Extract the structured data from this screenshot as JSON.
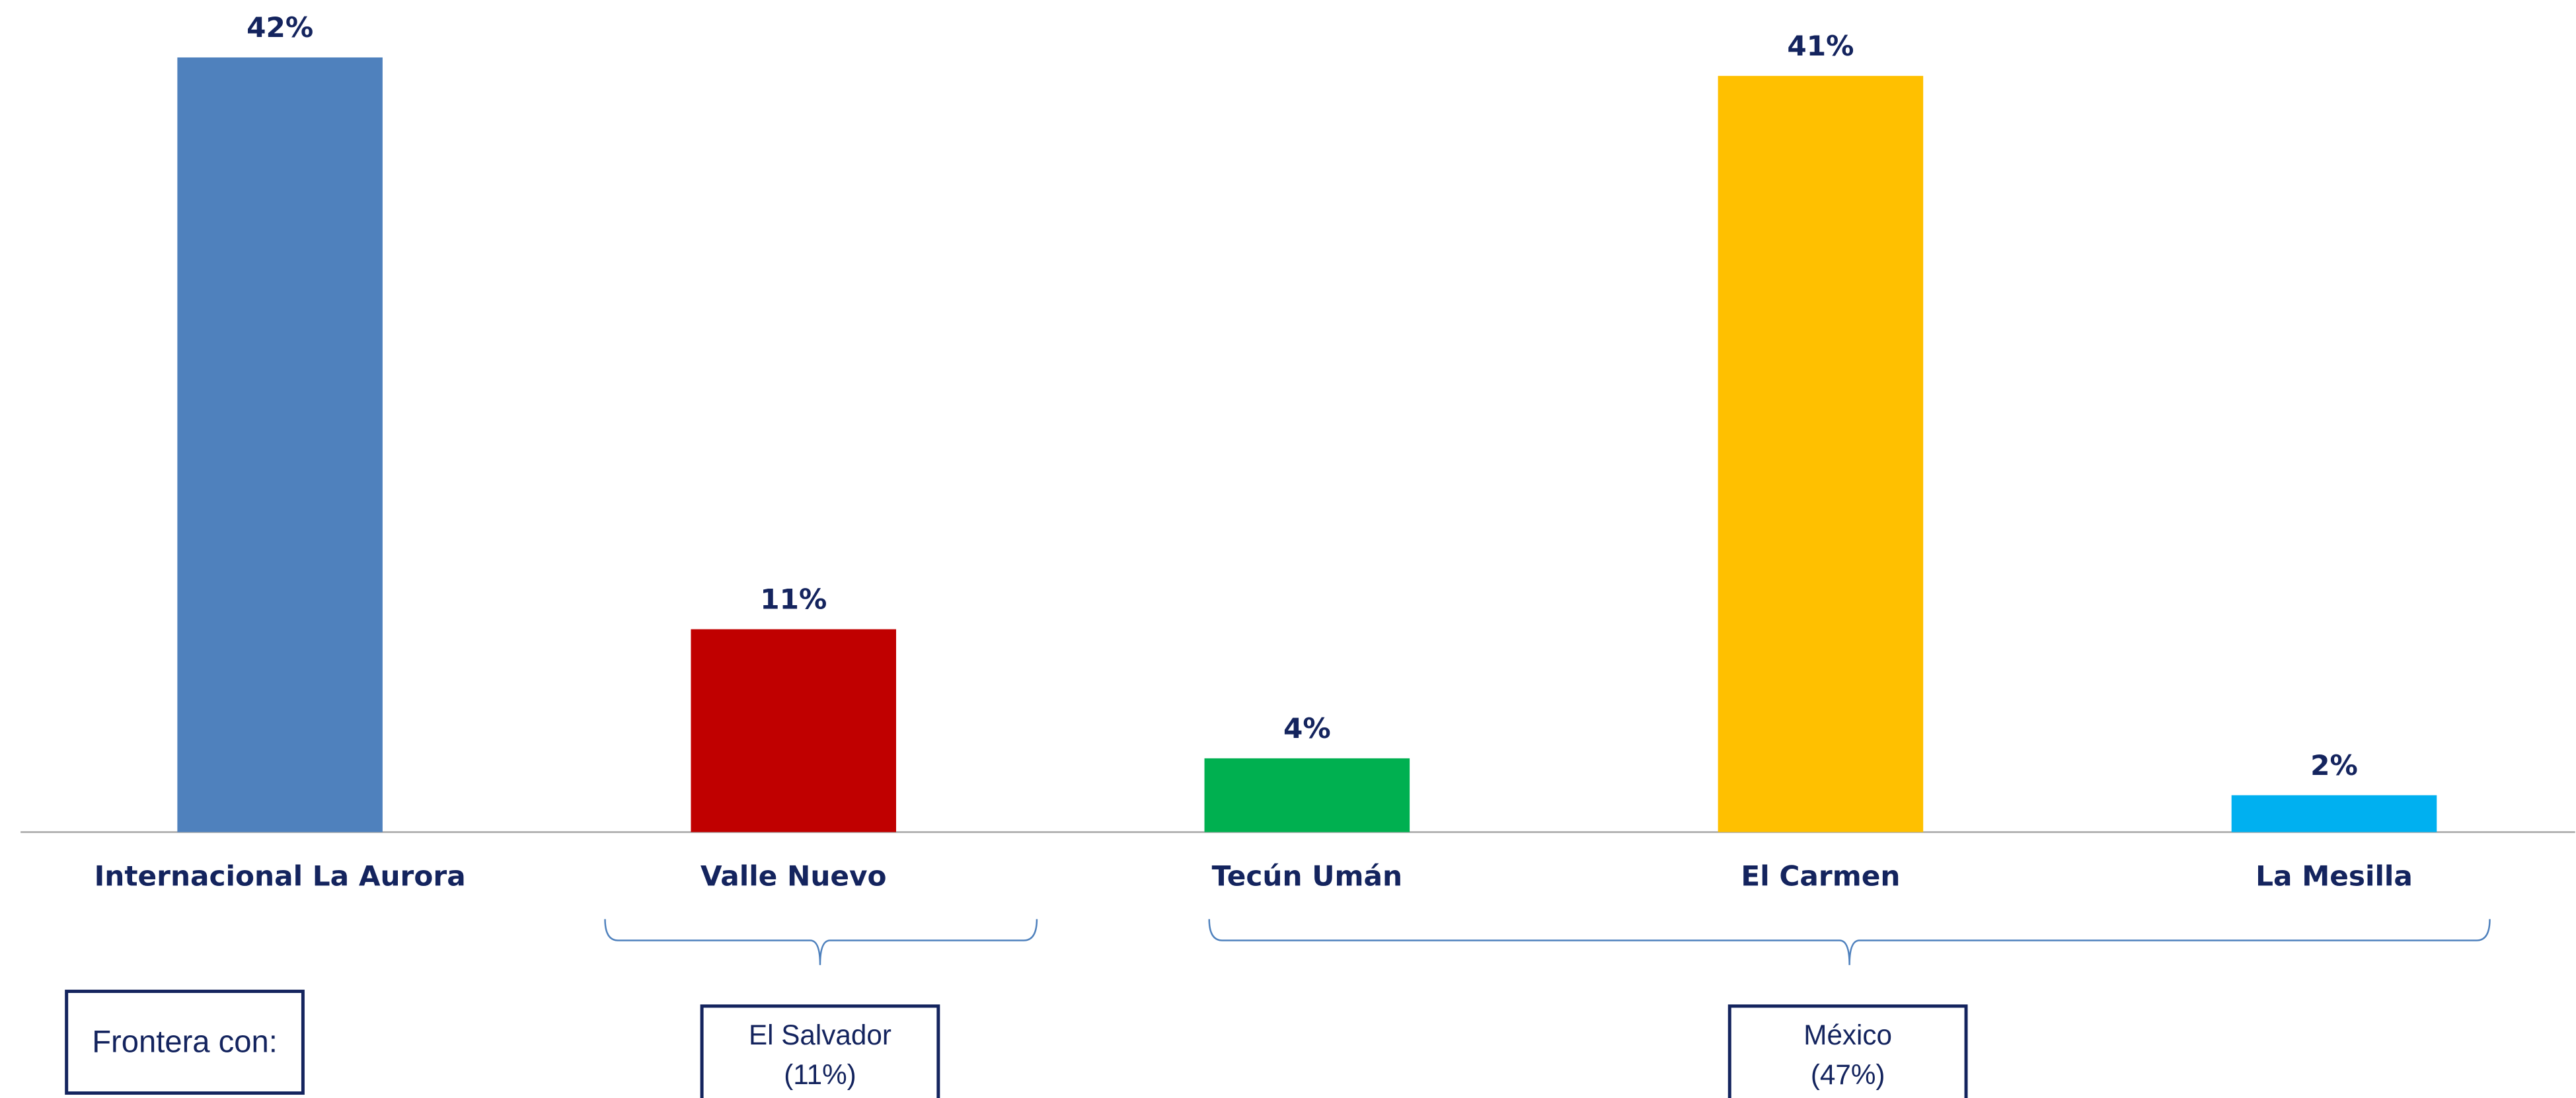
{
  "chart_data": {
    "type": "bar",
    "categories": [
      "Internacional La Aurora",
      "Valle Nuevo",
      "Tecún Umán",
      "El Carmen",
      "La Mesilla"
    ],
    "values": [
      42,
      11,
      4,
      41,
      2
    ],
    "value_labels": [
      "42%",
      "11%",
      "4%",
      "41%",
      "2%"
    ],
    "colors": [
      "#4f81bd",
      "#c00000",
      "#00b050",
      "#ffc000",
      "#00b0f0"
    ],
    "legend_title": "Frontera con:",
    "groups": [
      {
        "label": [
          "El Salvador",
          "(11%)"
        ]
      },
      {
        "label": [
          "México",
          "(47%)"
        ]
      }
    ]
  }
}
